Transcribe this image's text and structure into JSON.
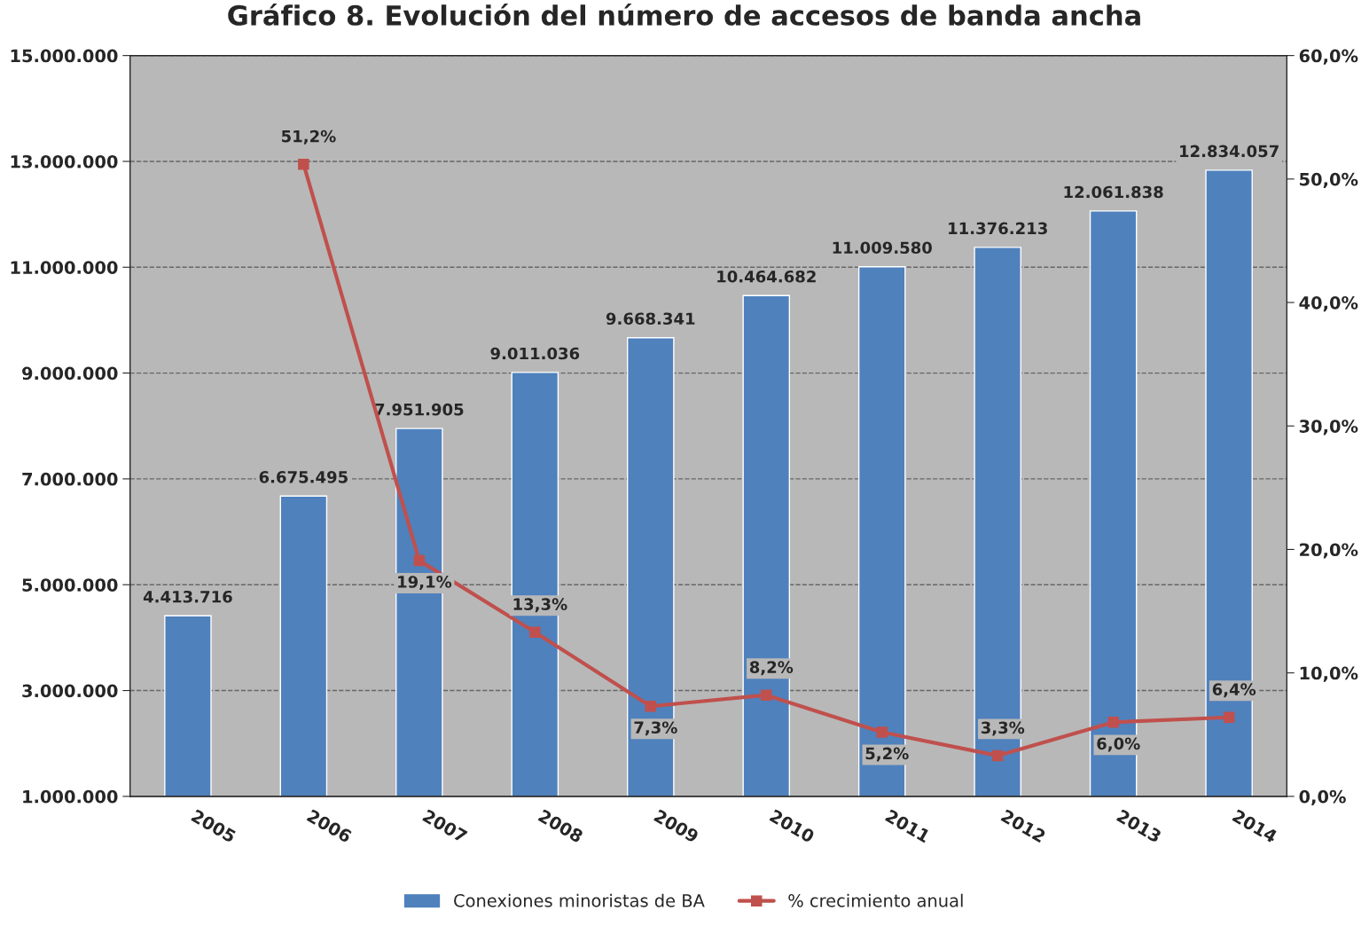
{
  "chart_data": {
    "type": "bar",
    "title": "Gráfico 8. Evolución del número de accesos de banda ancha",
    "categories": [
      "2005",
      "2006",
      "2007",
      "2008",
      "2009",
      "2010",
      "2011",
      "2012",
      "2013",
      "2014"
    ],
    "series": [
      {
        "name": "Conexiones minoristas de BA",
        "color": "#4f81bd",
        "values": [
          4413716,
          6675495,
          7951905,
          9011036,
          9668341,
          10464682,
          11009580,
          11376213,
          12061838,
          12834057
        ],
        "value_labels": [
          "4.413.716",
          "6.675.495",
          "7.951.905",
          "9.011.036",
          "9.668.341",
          "10.464.682",
          "11.009.580",
          "11.376.213",
          "12.061.838",
          "12.834.057"
        ]
      },
      {
        "name": "% crecimiento anual",
        "type": "line",
        "axis": "y2",
        "color": "#c0504d",
        "marker": "square",
        "values": [
          null,
          51.2,
          19.1,
          13.3,
          7.3,
          8.2,
          5.2,
          3.3,
          6.0,
          6.4
        ],
        "value_labels": [
          null,
          "51,2%",
          "19,1%",
          "13,3%",
          "7,3%",
          "8,2%",
          "5,2%",
          "3,3%",
          "6,0%",
          "6,4%"
        ]
      }
    ],
    "ylim": [
      1000000,
      15000000
    ],
    "yticks": [
      {
        "value": 1000000,
        "label": "1.000.000"
      },
      {
        "value": 3000000,
        "label": "3.000.000"
      },
      {
        "value": 5000000,
        "label": "5.000.000"
      },
      {
        "value": 7000000,
        "label": "7.000.000"
      },
      {
        "value": 9000000,
        "label": "9.000.000"
      },
      {
        "value": 11000000,
        "label": "11.000.000"
      },
      {
        "value": 13000000,
        "label": "13.000.000"
      },
      {
        "value": 15000000,
        "label": "15.000.000"
      }
    ],
    "y2lim": [
      0,
      60
    ],
    "y2ticks": [
      {
        "value": 0,
        "label": "0,0%"
      },
      {
        "value": 10,
        "label": "10,0%"
      },
      {
        "value": 20,
        "label": "20,0%"
      },
      {
        "value": 30,
        "label": "30,0%"
      },
      {
        "value": 40,
        "label": "40,0%"
      },
      {
        "value": 50,
        "label": "50,0%"
      },
      {
        "value": 60,
        "label": "60,0%"
      }
    ],
    "grid": "y",
    "line_style": "solid",
    "legend": "bottom"
  }
}
